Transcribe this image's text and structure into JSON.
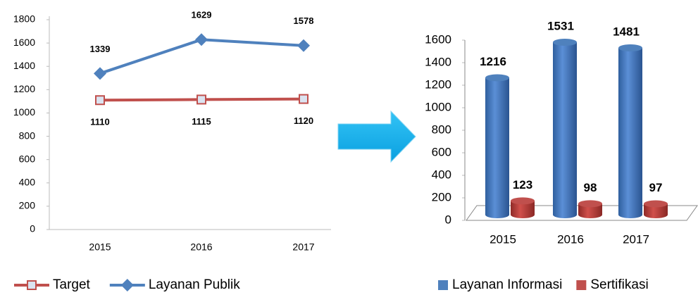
{
  "chart_data": [
    {
      "type": "line",
      "categories": [
        "2015",
        "2016",
        "2017"
      ],
      "series": [
        {
          "name": "Target",
          "color": "#c0504d",
          "marker": "square",
          "values": [
            1110,
            1115,
            1120
          ]
        },
        {
          "name": "Layanan Publik",
          "color": "#4f81bd",
          "marker": "diamond",
          "values": [
            1339,
            1629,
            1578
          ]
        }
      ],
      "ylim": [
        0,
        1800
      ],
      "yticks": [
        0,
        200,
        400,
        600,
        800,
        1000,
        1200,
        1400,
        1600,
        1800
      ],
      "legend": "bottom"
    },
    {
      "type": "bar",
      "categories": [
        "2015",
        "2016",
        "2017"
      ],
      "series": [
        {
          "name": "Layanan Informasi",
          "color": "#4f81bd",
          "values": [
            1216,
            1531,
            1481
          ]
        },
        {
          "name": "Sertifikasi",
          "color": "#c0504d",
          "values": [
            123,
            98,
            97
          ]
        }
      ],
      "ylim": [
        0,
        1600
      ],
      "yticks": [
        0,
        200,
        400,
        600,
        800,
        1000,
        1200,
        1400,
        1600
      ],
      "legend": "bottom"
    }
  ]
}
